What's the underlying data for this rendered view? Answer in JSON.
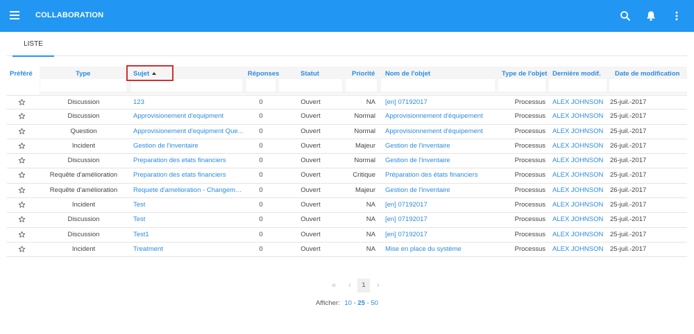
{
  "app": {
    "title": "COLLABORATION"
  },
  "tabs": [
    {
      "label": "LISTE"
    }
  ],
  "columns": {
    "prefere": "Préféré",
    "type": "Type",
    "sujet": "Sujet",
    "reponses": "Réponses",
    "statut": "Statut",
    "priorite": "Priorité",
    "nom_objet": "Nom de l'objet",
    "type_objet": "Type de l'objet",
    "derniere_modif": "Dernière modif.",
    "date_modif": "Date de modification"
  },
  "rows": [
    {
      "type": "Discussion",
      "sujet": "123",
      "reponses": "0",
      "statut": "Ouvert",
      "priorite": "NA",
      "nom_objet": "[en] 07192017",
      "type_objet": "Processus",
      "auteur": "ALEX JOHNSON",
      "date": "25-juil.-2017"
    },
    {
      "type": "Discussion",
      "sujet": "Approvisionement d'equipment",
      "reponses": "0",
      "statut": "Ouvert",
      "priorite": "Normal",
      "nom_objet": "Approvisionnement d'équipement",
      "type_objet": "Processus",
      "auteur": "ALEX JOHNSON",
      "date": "25-juil.-2017"
    },
    {
      "type": "Question",
      "sujet": "Approvisionement d'equipment Que...",
      "reponses": "0",
      "statut": "Ouvert",
      "priorite": "Normal",
      "nom_objet": "Approvisionnement d'équipement",
      "type_objet": "Processus",
      "auteur": "ALEX JOHNSON",
      "date": "25-juil.-2017"
    },
    {
      "type": "Incident",
      "sujet": "Gestion de l'inventaire",
      "reponses": "0",
      "statut": "Ouvert",
      "priorite": "Majeur",
      "nom_objet": "Gestion de l'inventaire",
      "type_objet": "Processus",
      "auteur": "ALEX JOHNSON",
      "date": "26-juil.-2017"
    },
    {
      "type": "Discussion",
      "sujet": "Preparation des etats financiers",
      "reponses": "0",
      "statut": "Ouvert",
      "priorite": "Normal",
      "nom_objet": "Gestion de l'inventaire",
      "type_objet": "Processus",
      "auteur": "ALEX JOHNSON",
      "date": "26-juil.-2017"
    },
    {
      "type": "Requête d'amélioration",
      "sujet": "Preparation des etats financiers",
      "reponses": "0",
      "statut": "Ouvert",
      "priorite": "Critique",
      "nom_objet": "Préparation des états financiers",
      "type_objet": "Processus",
      "auteur": "ALEX JOHNSON",
      "date": "25-juil.-2017"
    },
    {
      "type": "Requête d'amélioration",
      "sujet": "Requete d'amelioration - Changeme...",
      "reponses": "0",
      "statut": "Ouvert",
      "priorite": "Majeur",
      "nom_objet": "Gestion de l'inventaire",
      "type_objet": "Processus",
      "auteur": "ALEX JOHNSON",
      "date": "26-juil.-2017"
    },
    {
      "type": "Incident",
      "sujet": "Test",
      "reponses": "0",
      "statut": "Ouvert",
      "priorite": "NA",
      "nom_objet": "[en] 07192017",
      "type_objet": "Processus",
      "auteur": "ALEX JOHNSON",
      "date": "25-juil.-2017"
    },
    {
      "type": "Discussion",
      "sujet": "Test",
      "reponses": "0",
      "statut": "Ouvert",
      "priorite": "NA",
      "nom_objet": "[en] 07192017",
      "type_objet": "Processus",
      "auteur": "ALEX JOHNSON",
      "date": "25-juil.-2017"
    },
    {
      "type": "Discussion",
      "sujet": "Test1",
      "reponses": "0",
      "statut": "Ouvert",
      "priorite": "NA",
      "nom_objet": "[en] 07192017",
      "type_objet": "Processus",
      "auteur": "ALEX JOHNSON",
      "date": "25-juil.-2017"
    },
    {
      "type": "Incident",
      "sujet": "Treatment",
      "reponses": "0",
      "statut": "Ouvert",
      "priorite": "NA",
      "nom_objet": "Mise en place du système",
      "type_objet": "Processus",
      "auteur": "ALEX JOHNSON",
      "date": "25-juil.-2017"
    }
  ],
  "pagination": {
    "first": "«",
    "prev": "‹",
    "current_page": "1",
    "next": "›",
    "show_label": "Afficher:",
    "sizes": [
      "10",
      "25",
      "50"
    ],
    "separator": "-"
  },
  "icons": {
    "star": "star-outline-icon",
    "search": "search-icon",
    "bell": "bell-icon",
    "more": "more-vert-icon",
    "menu": "menu-icon"
  },
  "colors": {
    "primary": "#2196f3",
    "link": "#2a8be0",
    "highlight": "#d32f2f"
  }
}
